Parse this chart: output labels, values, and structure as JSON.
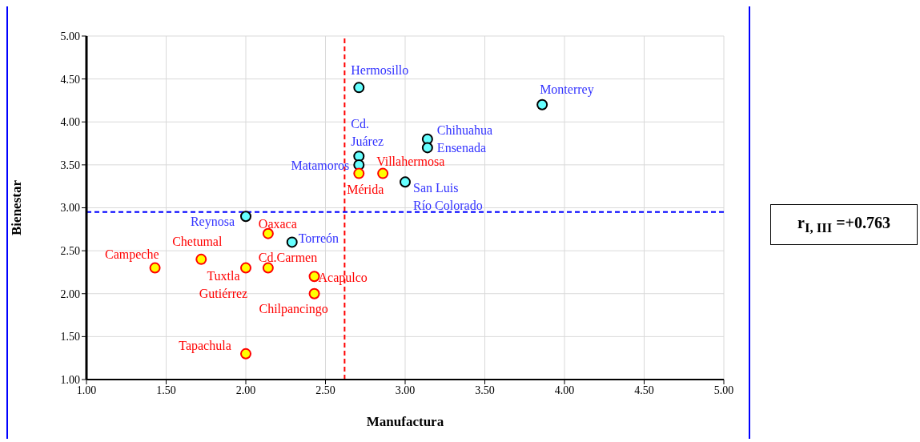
{
  "chart_data": {
    "type": "scatter",
    "xlabel": "Manufactura",
    "ylabel": "Bienestar",
    "series": [
      {
        "color": "#66ffff",
        "x": [
          2.71,
          3.86,
          3.14,
          3.14,
          2.71,
          2.71,
          3.0,
          2.0,
          2.29
        ],
        "values": [
          4.4,
          4.2,
          3.8,
          3.7,
          3.6,
          3.5,
          3.3,
          2.9,
          2.6
        ]
      },
      {
        "color": "#ffff00",
        "x": [
          2.71,
          2.86,
          2.14,
          1.72,
          1.43,
          2.0,
          2.14,
          2.43,
          2.43,
          2.0
        ],
        "values": [
          3.4,
          3.4,
          2.7,
          2.4,
          2.3,
          2.3,
          2.3,
          2.2,
          2.0,
          1.3
        ]
      }
    ],
    "xlim": [
      1,
      5
    ],
    "xticks": [
      {
        "value": 1,
        "label": "1.00"
      },
      {
        "value": 1.5,
        "label": "1.50"
      },
      {
        "value": 2,
        "label": "2.00"
      },
      {
        "value": 2.5,
        "label": "2.50"
      },
      {
        "value": 3,
        "label": "3.00"
      },
      {
        "value": 3.5,
        "label": "3.50"
      },
      {
        "value": 4,
        "label": "4.00"
      },
      {
        "value": 4.5,
        "label": "4.50"
      },
      {
        "value": 5,
        "label": "5.00"
      }
    ],
    "ylim": [
      1,
      5
    ],
    "yticks": [
      {
        "value": 1,
        "label": "1.00"
      },
      {
        "value": 1.5,
        "label": "1.50"
      },
      {
        "value": 2,
        "label": "2.00"
      },
      {
        "value": 2.5,
        "label": "2.50"
      },
      {
        "value": 3,
        "label": "3.00"
      },
      {
        "value": 3.5,
        "label": "3.50"
      },
      {
        "value": 4,
        "label": "4.00"
      },
      {
        "value": 4.5,
        "label": "4.50"
      },
      {
        "value": 5,
        "label": "5.00"
      }
    ],
    "ref_lines": [
      {
        "axis": "x",
        "value": 2.62,
        "color": "#ff0000",
        "line_style": "dashed"
      },
      {
        "axis": "y",
        "value": 2.95,
        "color": "#0000ff",
        "line_style": "dashed"
      }
    ],
    "grid": true,
    "marker": "circle",
    "annotations": [
      {
        "text": "Hermosillo",
        "x": 2.71,
        "y": 4.4
      },
      {
        "text": "Monterrey",
        "x": 3.86,
        "y": 4.2
      },
      {
        "text": "Chihuahua",
        "x": 3.14,
        "y": 3.8
      },
      {
        "text": "Ensenada",
        "x": 3.14,
        "y": 3.7
      },
      {
        "text": "Cd. Juárez",
        "x": 2.71,
        "y": 3.6
      },
      {
        "text": "Matamoros",
        "x": 2.71,
        "y": 3.5
      },
      {
        "text": "Mérida",
        "x": 2.71,
        "y": 3.4
      },
      {
        "text": "Villahermosa",
        "x": 2.86,
        "y": 3.4
      },
      {
        "text": "San Luis Río Colorado",
        "x": 3.0,
        "y": 3.3
      },
      {
        "text": "Reynosa",
        "x": 2.0,
        "y": 2.9
      },
      {
        "text": "Oaxaca",
        "x": 2.14,
        "y": 2.7
      },
      {
        "text": "Torreón",
        "x": 2.29,
        "y": 2.6
      },
      {
        "text": "Chetumal",
        "x": 1.72,
        "y": 2.4
      },
      {
        "text": "Campeche",
        "x": 1.43,
        "y": 2.3
      },
      {
        "text": "Tuxtla Gutiérrez",
        "x": 2.0,
        "y": 2.3
      },
      {
        "text": "Cd.Carmen",
        "x": 2.14,
        "y": 2.3
      },
      {
        "text": "Acapulco",
        "x": 2.43,
        "y": 2.2
      },
      {
        "text": "Chilpancingo",
        "x": 2.43,
        "y": 2.0
      },
      {
        "text": "Tapachula",
        "x": 2.0,
        "y": 1.3
      },
      "r$_{I, III}$ =+0.763"
    ]
  }
}
